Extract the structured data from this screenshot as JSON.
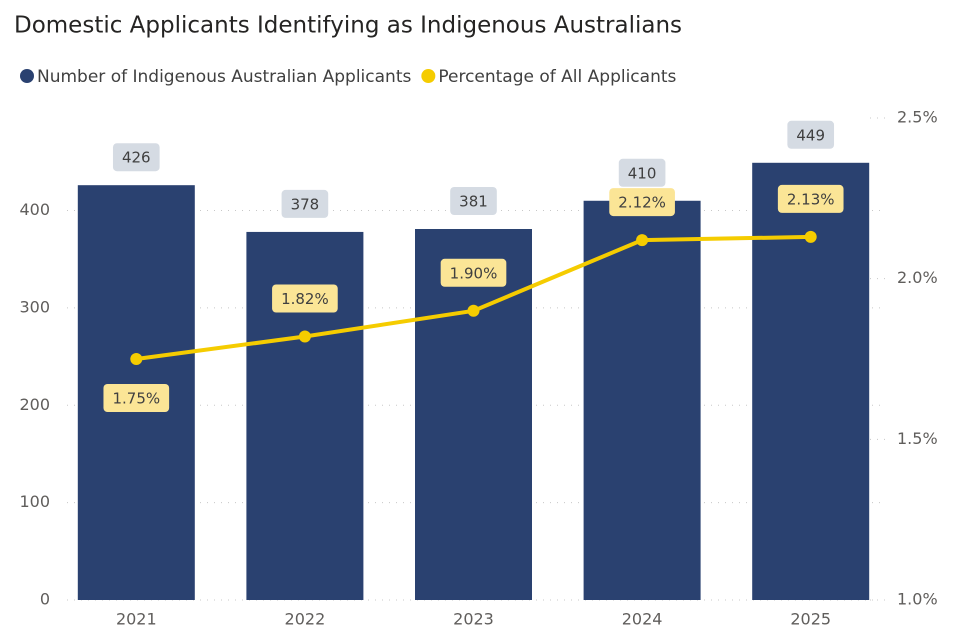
{
  "chart_data": {
    "type": "bar-line",
    "title": "Domestic Applicants Identifying as Indigenous Australians",
    "categories": [
      "2021",
      "2022",
      "2023",
      "2024",
      "2025"
    ],
    "series": [
      {
        "name": "Number of Indigenous Australian Applicants",
        "type": "bar",
        "color": "#2a4170",
        "values": [
          426,
          378,
          381,
          410,
          449
        ]
      },
      {
        "name": "Percentage of All Applicants",
        "type": "line",
        "axis": "y2",
        "color": "#f5cc00",
        "values": [
          1.75,
          1.82,
          1.9,
          2.12,
          2.13
        ],
        "value_labels": [
          "1.75%",
          "1.82%",
          "1.90%",
          "2.12%",
          "2.13%"
        ]
      }
    ],
    "ylim": [
      0,
      495
    ],
    "yticks": [
      0,
      100,
      200,
      300,
      400
    ],
    "y2lim": [
      1.0,
      2.5
    ],
    "y2ticks": [
      {
        "value": 1.0,
        "label": "1.0%"
      },
      {
        "value": 1.5,
        "label": "1.5%"
      },
      {
        "value": 2.0,
        "label": "2.0%"
      },
      {
        "value": 2.5,
        "label": "2.5%"
      }
    ],
    "grid": true,
    "legend": "top-left"
  }
}
